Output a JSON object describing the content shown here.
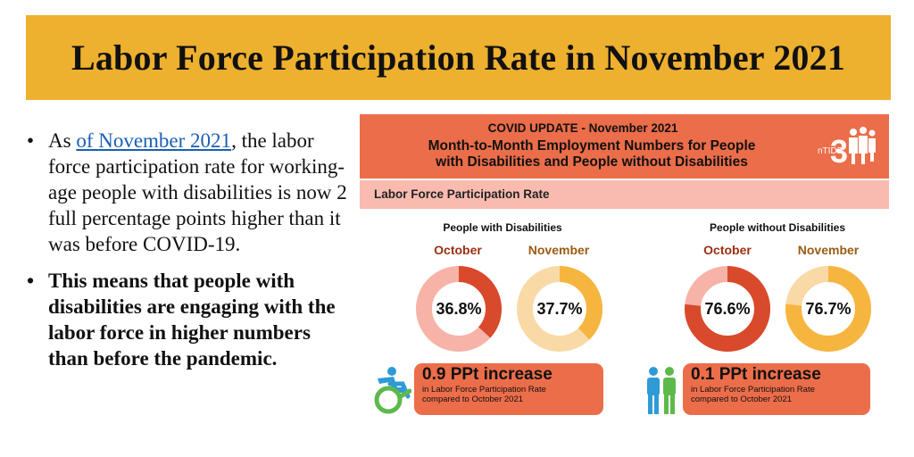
{
  "title": "Labor Force Participation Rate in November 2021",
  "bullets": {
    "b1_prefix": "As ",
    "b1_link": "of November 2021",
    "b1_rest": ", the labor force participation rate for working-age people with disabilities is now 2 full percentage points higher than it was before COVID-19.",
    "b2": "This means that people with disabilities are engaging with the labor force in higher numbers than before the pandemic."
  },
  "infographic": {
    "header_line1": "COVID UPDATE - November 2021",
    "header_line2": "Month-to-Month Employment Numbers for People",
    "header_line3": "with Disabilities and People without Disabilities",
    "logo_text": "nTIDE",
    "section_label": "Labor Force Participation Rate",
    "with_disabilities": {
      "title": "People with Disabilities",
      "october_label": "October",
      "november_label": "November",
      "october_value": "36.8%",
      "november_value": "37.7%",
      "increase": "0.9 PPt increase",
      "increase_line1": "in Labor Force Participation Rate",
      "increase_line2": "compared to October 2021"
    },
    "without_disabilities": {
      "title": "People without Disabilities",
      "october_label": "October",
      "november_label": "November",
      "october_value": "76.6%",
      "november_value": "76.7%",
      "increase": "0.1 PPt increase",
      "increase_line1": "in Labor Force Participation Rate",
      "increase_line2": "compared to October 2021"
    }
  },
  "colors": {
    "banner": "#EDB02F",
    "header": "#EC6D4A",
    "section_bar": "#F9BBB0",
    "october_fill": "#D84A2B",
    "october_track": "#F7B3A8",
    "november_fill": "#F6B53F",
    "november_track": "#F9D9A6",
    "link": "#1a5fb4"
  },
  "chart_data": {
    "type": "pie",
    "groups": [
      {
        "name": "People with Disabilities",
        "categories": [
          "October",
          "November"
        ],
        "values": [
          36.8,
          37.7
        ],
        "change": "0.9 PPt increase"
      },
      {
        "name": "People without Disabilities",
        "categories": [
          "October",
          "November"
        ],
        "values": [
          76.6,
          76.7
        ],
        "change": "0.1 PPt increase"
      }
    ],
    "title": "Labor Force Participation Rate",
    "unit": "%"
  }
}
